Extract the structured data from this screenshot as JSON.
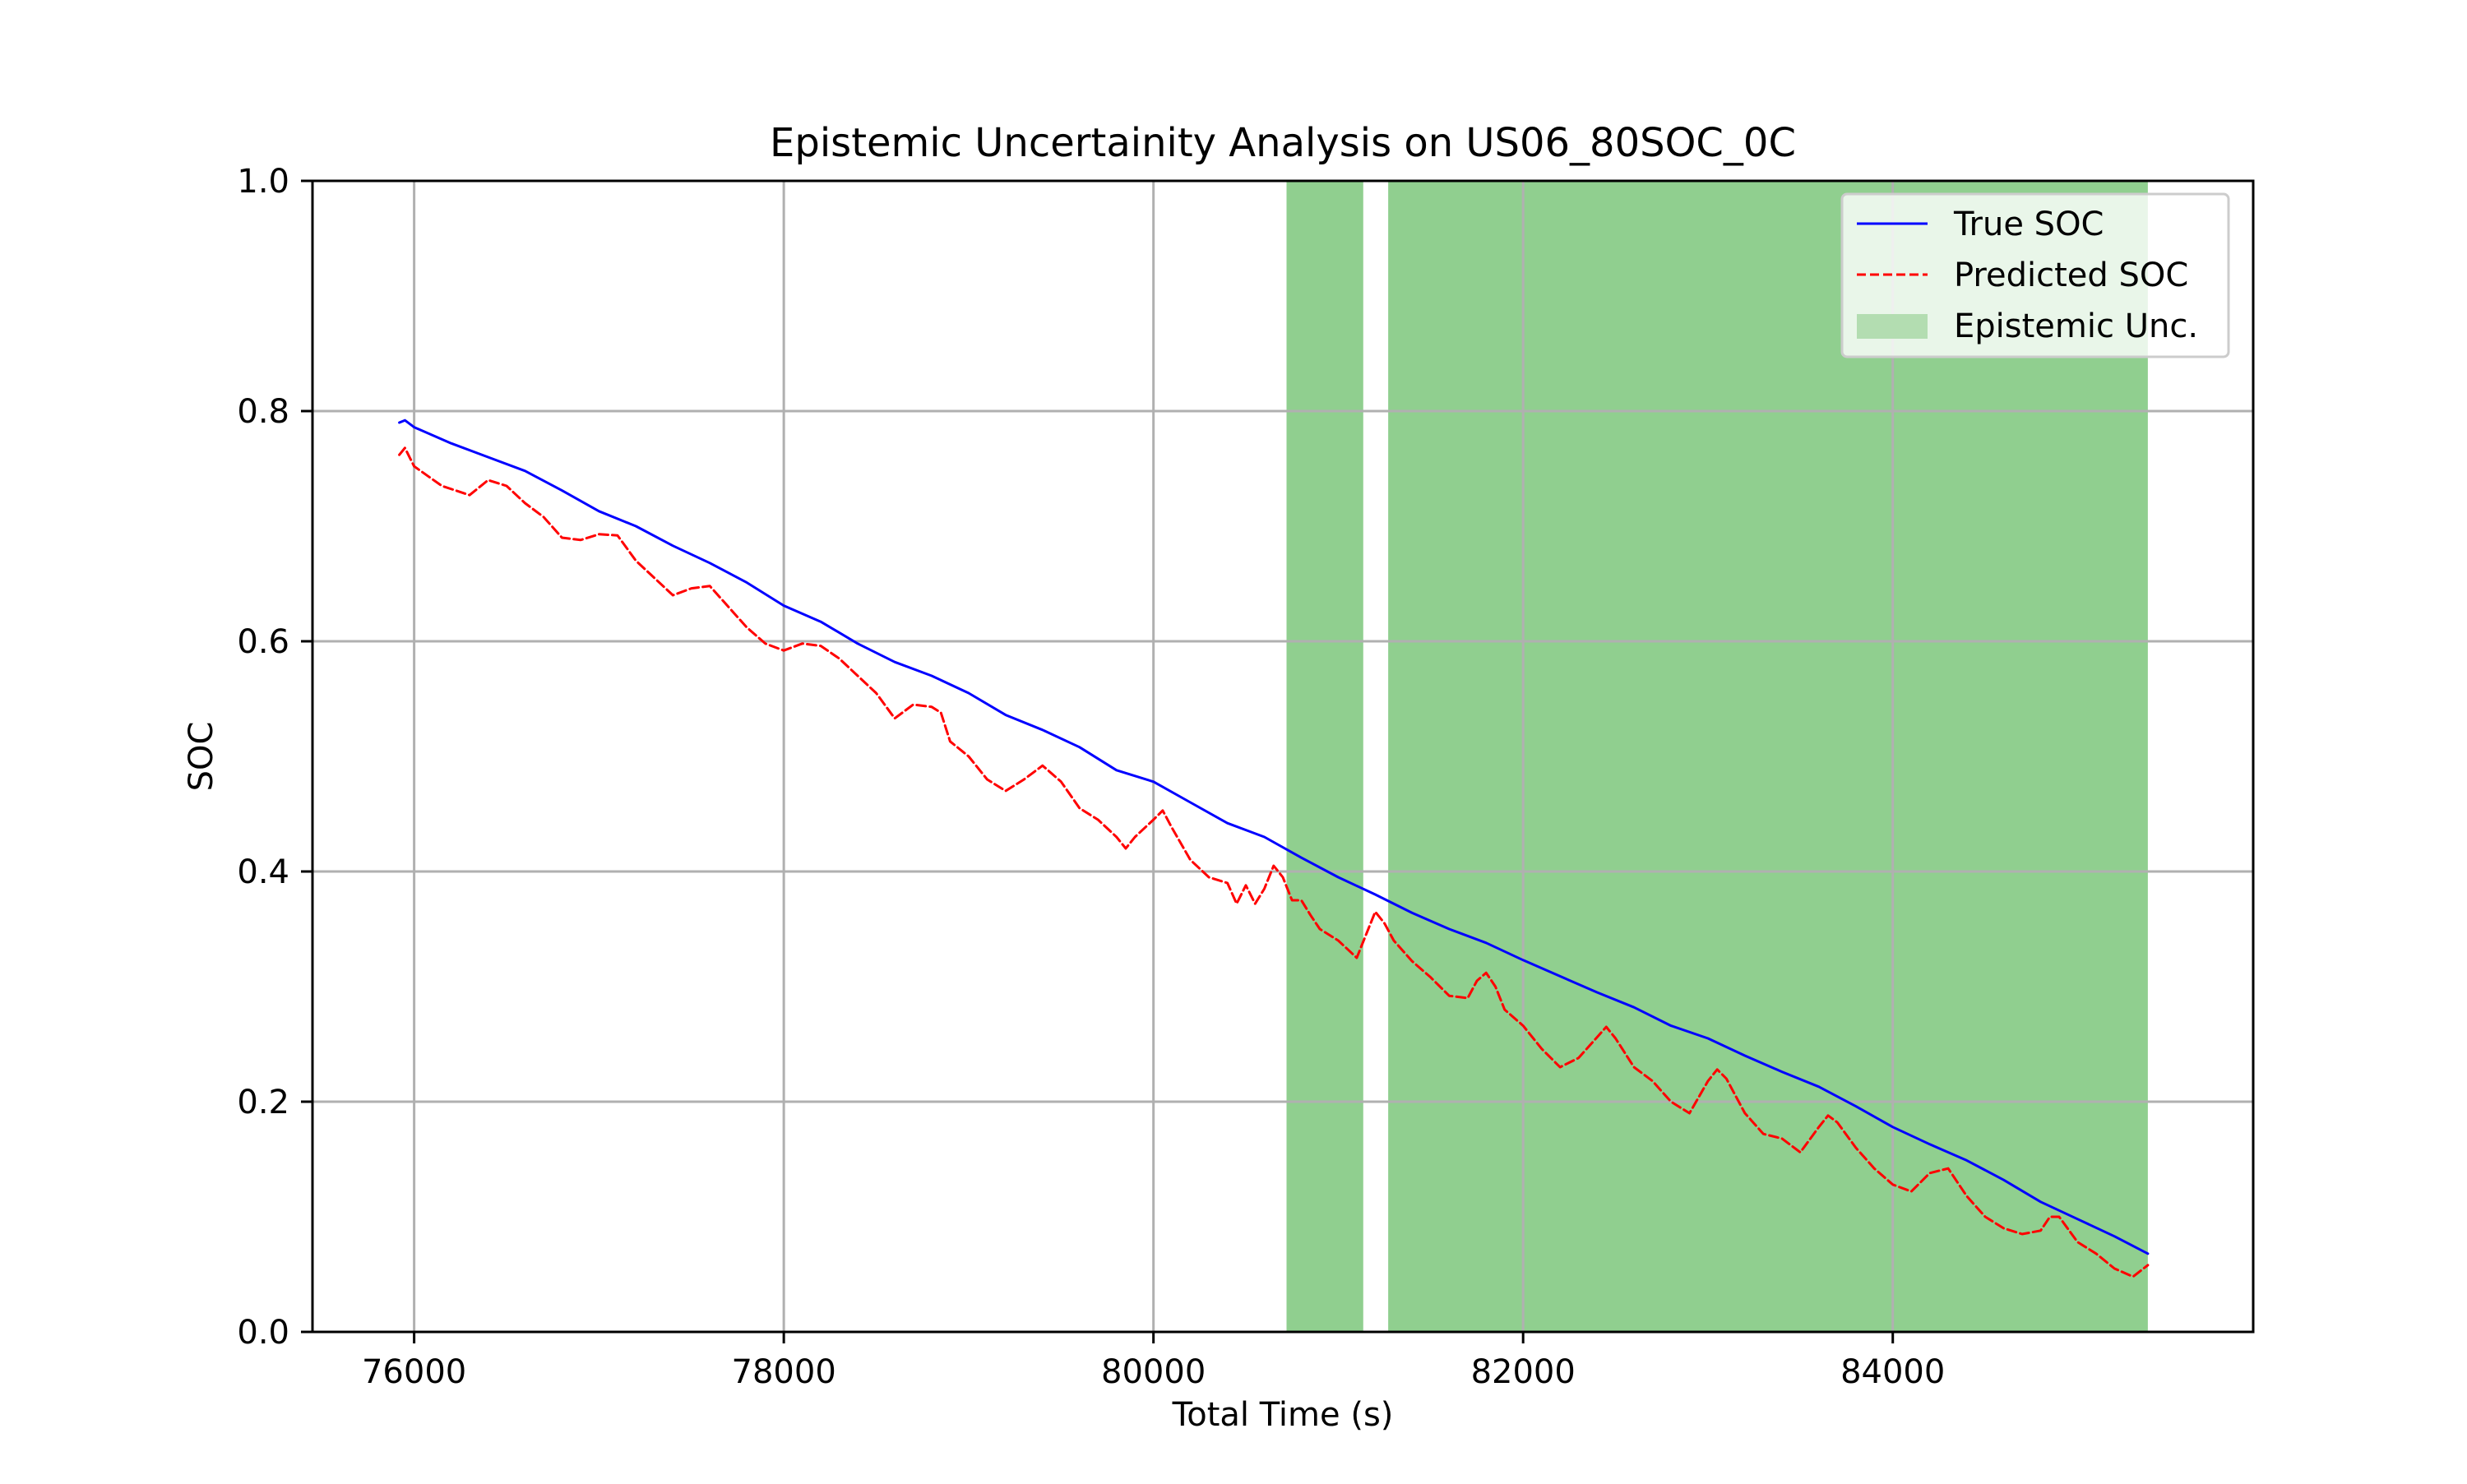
{
  "chart_data": {
    "type": "line",
    "title": "Epistemic Uncertainity Analysis on US06_80SOC_0C",
    "xlabel": "Total Time (s)",
    "ylabel": "SOC",
    "xlim": [
      75450,
      85950
    ],
    "ylim": [
      0.0,
      1.0
    ],
    "xticks": [
      76000,
      78000,
      80000,
      82000,
      84000
    ],
    "xtick_labels": [
      "76000",
      "78000",
      "80000",
      "82000",
      "84000"
    ],
    "yticks": [
      0.0,
      0.2,
      0.4,
      0.6,
      0.8,
      1.0
    ],
    "ytick_labels": [
      "0.0",
      "0.2",
      "0.4",
      "0.6",
      "0.8",
      "1.0"
    ],
    "grid": true,
    "legend_position": "top-right",
    "colors": {
      "true_soc": "#0000ff",
      "predicted_soc": "#ff0000",
      "epistemic": "#90cf8f",
      "legend_patch": "#b3ddb1"
    },
    "series": [
      {
        "name": "True SOC",
        "style": "solid",
        "x": [
          75920,
          75950,
          76000,
          76200,
          76400,
          76600,
          76800,
          77000,
          77200,
          77400,
          77600,
          77800,
          78000,
          78200,
          78400,
          78600,
          78800,
          79000,
          79200,
          79400,
          79600,
          79800,
          80000,
          80200,
          80400,
          80600,
          80800,
          81000,
          81200,
          81400,
          81600,
          81800,
          82000,
          82200,
          82400,
          82600,
          82800,
          83000,
          83200,
          83400,
          83600,
          83800,
          84000,
          84200,
          84400,
          84600,
          84800,
          85000,
          85200,
          85380
        ],
        "y": [
          0.79,
          0.792,
          0.786,
          0.772,
          0.76,
          0.748,
          0.731,
          0.713,
          0.7,
          0.683,
          0.668,
          0.651,
          0.631,
          0.617,
          0.598,
          0.582,
          0.57,
          0.555,
          0.536,
          0.523,
          0.508,
          0.488,
          0.478,
          0.46,
          0.442,
          0.43,
          0.412,
          0.395,
          0.38,
          0.364,
          0.35,
          0.338,
          0.323,
          0.309,
          0.295,
          0.282,
          0.266,
          0.255,
          0.24,
          0.226,
          0.213,
          0.196,
          0.178,
          0.163,
          0.149,
          0.132,
          0.113,
          0.098,
          0.083,
          0.068
        ]
      },
      {
        "name": "Predicted SOC",
        "style": "dashed",
        "x": [
          75920,
          75950,
          76000,
          76150,
          76300,
          76400,
          76500,
          76600,
          76700,
          76800,
          76900,
          77000,
          77100,
          77200,
          77300,
          77400,
          77500,
          77600,
          77700,
          77800,
          77900,
          78000,
          78100,
          78200,
          78300,
          78400,
          78500,
          78600,
          78700,
          78800,
          78850,
          78900,
          79000,
          79100,
          79200,
          79300,
          79400,
          79500,
          79600,
          79700,
          79800,
          79850,
          79900,
          80000,
          80050,
          80100,
          80200,
          80300,
          80400,
          80450,
          80500,
          80550,
          80600,
          80650,
          80700,
          80750,
          80800,
          80850,
          80900,
          81000,
          81100,
          81150,
          81200,
          81250,
          81300,
          81400,
          81500,
          81600,
          81700,
          81750,
          81800,
          81850,
          81900,
          82000,
          82100,
          82200,
          82300,
          82400,
          82450,
          82500,
          82600,
          82700,
          82800,
          82900,
          83000,
          83050,
          83100,
          83200,
          83300,
          83400,
          83500,
          83600,
          83650,
          83700,
          83800,
          83900,
          84000,
          84100,
          84200,
          84300,
          84400,
          84500,
          84600,
          84700,
          84800,
          84850,
          84900,
          85000,
          85100,
          85200,
          85300,
          85380
        ],
        "y": [
          0.762,
          0.768,
          0.752,
          0.735,
          0.727,
          0.74,
          0.735,
          0.72,
          0.708,
          0.69,
          0.688,
          0.693,
          0.692,
          0.67,
          0.655,
          0.64,
          0.646,
          0.648,
          0.63,
          0.612,
          0.598,
          0.592,
          0.598,
          0.596,
          0.585,
          0.57,
          0.555,
          0.533,
          0.545,
          0.543,
          0.538,
          0.513,
          0.5,
          0.48,
          0.47,
          0.48,
          0.492,
          0.478,
          0.455,
          0.445,
          0.43,
          0.42,
          0.43,
          0.445,
          0.453,
          0.438,
          0.41,
          0.395,
          0.39,
          0.372,
          0.388,
          0.372,
          0.385,
          0.405,
          0.395,
          0.375,
          0.375,
          0.362,
          0.35,
          0.34,
          0.325,
          0.345,
          0.365,
          0.355,
          0.34,
          0.322,
          0.308,
          0.292,
          0.29,
          0.305,
          0.312,
          0.3,
          0.28,
          0.266,
          0.246,
          0.23,
          0.238,
          0.256,
          0.265,
          0.255,
          0.23,
          0.218,
          0.2,
          0.19,
          0.218,
          0.228,
          0.22,
          0.19,
          0.172,
          0.168,
          0.156,
          0.178,
          0.188,
          0.182,
          0.16,
          0.142,
          0.128,
          0.122,
          0.138,
          0.142,
          0.118,
          0.1,
          0.09,
          0.085,
          0.088,
          0.1,
          0.1,
          0.078,
          0.068,
          0.055,
          0.048,
          0.058
        ]
      }
    ],
    "uncertainty_bands": [
      {
        "name": "Epistemic Unc.",
        "x_start": 80720,
        "x_end": 81135
      },
      {
        "x_start": 81270,
        "x_end": 85380
      }
    ]
  }
}
